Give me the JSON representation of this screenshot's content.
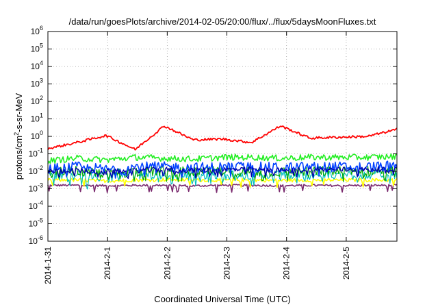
{
  "chart_data": {
    "type": "line",
    "title": "/data/run/goesPlots/archive/2014-02-05/20:00/flux/../flux/5daysMoonFluxes.txt",
    "xlabel": "Coordinated Universal Time (UTC)",
    "ylabel": {
      "pre": "protons/cm",
      "sup": "2",
      "post": "-s-sr-MeV"
    },
    "yscale": "log",
    "ylim_exponents": [
      -6,
      6
    ],
    "ytick_exponents": [
      6,
      5,
      4,
      3,
      2,
      1,
      0,
      -1,
      -2,
      -3,
      -4,
      -5,
      -6
    ],
    "xlim_days": [
      0,
      5.85
    ],
    "xticks": [
      {
        "day": 0,
        "label": "2014-1-31"
      },
      {
        "day": 1,
        "label": "2014-2-1"
      },
      {
        "day": 2,
        "label": "2014-2-2"
      },
      {
        "day": 3,
        "label": "2014-2-3"
      },
      {
        "day": 4,
        "label": "2014-2-4"
      },
      {
        "day": 5,
        "label": "2014-2-5"
      }
    ],
    "grid": true,
    "series": [
      {
        "color": "#7a2a6e",
        "base": [
          -2.8,
          -2.8,
          -2.82,
          -2.8,
          -2.8,
          -2.83,
          -2.8,
          -2.8,
          -2.82,
          -2.8,
          -2.82,
          -2.8,
          -2.8
        ],
        "noise": 0.06,
        "width": 1.6
      },
      {
        "color": "#ffff00",
        "base": [
          -2.5,
          -2.5,
          -2.55,
          -2.5,
          -2.48,
          -2.5,
          -2.5,
          -2.5,
          -2.52,
          -2.5,
          -2.5,
          -2.5,
          -2.5
        ],
        "noise": 0.1,
        "width": 1.6
      },
      {
        "color": "#00bfbf",
        "base": [
          -2.25,
          -2.2,
          -2.3,
          -2.2,
          -2.2,
          -2.25,
          -2.2,
          -2.2,
          -2.25,
          -2.2,
          -2.2,
          -2.2,
          -2.2
        ],
        "noise": 0.28,
        "width": 1.2
      },
      {
        "color": "#00aa00",
        "base": [
          -2.1,
          -2.0,
          -2.15,
          -2.0,
          -2.0,
          -2.05,
          -2.0,
          -2.0,
          -2.05,
          -2.0,
          -2.0,
          -2.0,
          -2.0
        ],
        "noise": 0.3,
        "width": 1.2
      },
      {
        "color": "#0040ff",
        "base": [
          -1.85,
          -1.75,
          -1.9,
          -1.75,
          -1.75,
          -1.8,
          -1.75,
          -1.75,
          -1.8,
          -1.75,
          -1.75,
          -1.75,
          -1.7
        ],
        "noise": 0.3,
        "width": 1.6
      },
      {
        "color": "#0000aa",
        "base": [
          -2.0,
          -1.95,
          -2.05,
          -1.95,
          -1.9,
          -1.95,
          -1.9,
          -1.9,
          -1.95,
          -1.9,
          -1.9,
          -1.9,
          -1.85
        ],
        "noise": 0.15,
        "width": 1.4
      },
      {
        "color": "#22ee22",
        "base": [
          -1.4,
          -1.25,
          -1.35,
          -1.2,
          -1.25,
          -1.3,
          -1.2,
          -1.2,
          -1.25,
          -1.2,
          -1.2,
          -1.2,
          -1.15
        ],
        "noise": 0.18,
        "width": 1.6
      },
      {
        "color": "#ff0000",
        "base": [
          -0.7,
          -0.35,
          0.05,
          -0.75,
          0.6,
          -0.2,
          -0.15,
          -0.35,
          0.6,
          -0.1,
          -0.05,
          0.0,
          0.4
        ],
        "noise": 0.07,
        "width": 1.8
      }
    ]
  }
}
